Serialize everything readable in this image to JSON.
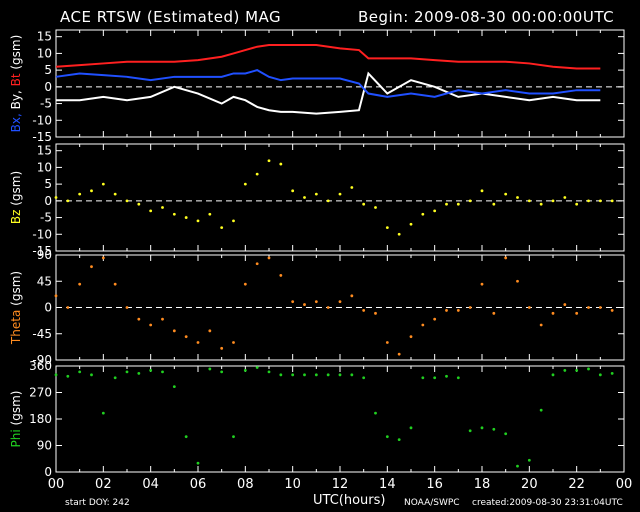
{
  "header": {
    "title": "ACE RTSW (Estimated) MAG",
    "begin": "Begin: 2009-08-30 00:00:00UTC"
  },
  "footer": {
    "start_doy": "start DOY:  242",
    "x_axis_label": "UTC(hours)",
    "credit": "NOAA/SWPC",
    "created": "created:2009-08-30 23:31:04UTC"
  },
  "colors": {
    "background": "#000000",
    "axes": "#ffffff",
    "bt": "#ff2020",
    "by": "#ffffff",
    "bx": "#2050ff",
    "bz": "#ffff20",
    "theta": "#ff8c20",
    "phi": "#20d020"
  },
  "chart_data": [
    {
      "type": "line",
      "ylabel_parts": [
        {
          "text": "Bx,",
          "color": "#2050ff"
        },
        {
          "text": " By,",
          "color": "#ffffff"
        },
        {
          "text": " Bt",
          "color": "#ff2020"
        },
        {
          "text": "  (gsm)",
          "color": "#ffffff"
        }
      ],
      "xlim": [
        0,
        24
      ],
      "ylim": [
        -15,
        17
      ],
      "yticks": [
        15,
        10,
        5,
        0,
        -5,
        -10,
        -15
      ],
      "zero_line": true,
      "x": [
        0,
        1,
        2,
        3,
        4,
        5,
        6,
        7,
        7.5,
        8,
        8.5,
        9,
        9.5,
        10,
        11,
        12,
        12.8,
        13.2,
        14,
        15,
        16,
        17,
        18,
        19,
        20,
        21,
        22,
        23
      ],
      "series": [
        {
          "name": "Bt",
          "color": "#ff2020",
          "values": [
            6,
            6.5,
            7,
            7.5,
            7.5,
            7.5,
            8,
            9,
            10,
            11,
            12,
            12.5,
            12.5,
            12.5,
            12.5,
            11.5,
            11,
            8.5,
            8.5,
            8.5,
            8,
            7.5,
            7.5,
            7.5,
            7,
            6,
            5.5,
            5.5
          ]
        },
        {
          "name": "By",
          "color": "#ffffff",
          "values": [
            -4,
            -4,
            -3,
            -4,
            -3,
            0,
            -2,
            -5,
            -3,
            -4,
            -6,
            -7,
            -7.5,
            -7.5,
            -8,
            -7.5,
            -7,
            4,
            -2,
            2,
            0,
            -3,
            -2,
            -3,
            -4,
            -3,
            -4,
            -4
          ]
        },
        {
          "name": "Bx",
          "color": "#2050ff",
          "values": [
            3,
            4,
            3.5,
            3,
            2,
            3,
            3,
            3,
            4,
            4,
            5,
            3,
            2,
            2.5,
            2.5,
            2.5,
            1,
            -2,
            -3,
            -2,
            -3,
            -1,
            -2,
            -1,
            -2,
            -2,
            -1,
            -1
          ]
        }
      ]
    },
    {
      "type": "scatter",
      "ylabel_parts": [
        {
          "text": "Bz",
          "color": "#ffff20"
        },
        {
          "text": "  (gsm)",
          "color": "#ffffff"
        }
      ],
      "xlim": [
        0,
        24
      ],
      "ylim": [
        -15,
        17
      ],
      "yticks": [
        15,
        10,
        5,
        0,
        -5,
        -10,
        -15
      ],
      "zero_line": true,
      "series": [
        {
          "name": "Bz",
          "color": "#ffff20",
          "x": [
            0,
            0.5,
            1,
            1.5,
            2,
            2.5,
            3,
            3.5,
            4,
            4.5,
            5,
            5.5,
            6,
            6.5,
            7,
            7.5,
            8,
            8.5,
            9,
            9.5,
            10,
            10.5,
            11,
            11.5,
            12,
            12.5,
            13,
            13.5,
            14,
            14.5,
            15,
            15.5,
            16,
            16.5,
            17,
            17.5,
            18,
            18.5,
            19,
            19.5,
            20,
            20.5,
            21,
            21.5,
            22,
            22.5,
            23,
            23.5
          ],
          "values": [
            1,
            0,
            2,
            3,
            5,
            2,
            0,
            -1,
            -3,
            -2,
            -4,
            -5,
            -6,
            -4,
            -8,
            -6,
            5,
            8,
            12,
            11,
            3,
            1,
            2,
            0,
            2,
            4,
            -1,
            -2,
            -8,
            -10,
            -7,
            -4,
            -3,
            -1,
            -1,
            0,
            3,
            -1,
            2,
            1,
            0,
            -1,
            0,
            1,
            -1,
            0,
            0,
            0
          ]
        }
      ]
    },
    {
      "type": "scatter",
      "ylabel_parts": [
        {
          "text": "Theta",
          "color": "#ff8c20"
        },
        {
          "text": "  (gsm)",
          "color": "#ffffff"
        }
      ],
      "xlim": [
        0,
        24
      ],
      "ylim": [
        -90,
        90
      ],
      "yticks": [
        90,
        45,
        0,
        -45,
        -90
      ],
      "zero_line": true,
      "series": [
        {
          "name": "Theta",
          "color": "#ff8c20",
          "x": [
            0,
            0.5,
            1,
            1.5,
            2,
            2.5,
            3,
            3.5,
            4,
            4.5,
            5,
            5.5,
            6,
            6.5,
            7,
            7.5,
            8,
            8.5,
            9,
            9.5,
            10,
            10.5,
            11,
            11.5,
            12,
            12.5,
            13,
            13.5,
            14,
            14.5,
            15,
            15.5,
            16,
            16.5,
            17,
            17.5,
            18,
            18.5,
            19,
            19.5,
            20,
            20.5,
            21,
            21.5,
            22,
            22.5,
            23,
            23.5
          ],
          "values": [
            20,
            0,
            40,
            70,
            85,
            40,
            0,
            -20,
            -30,
            -20,
            -40,
            -50,
            -60,
            -40,
            -70,
            -60,
            40,
            75,
            85,
            55,
            10,
            5,
            10,
            0,
            10,
            20,
            -5,
            -10,
            -60,
            -80,
            -50,
            -30,
            -20,
            -5,
            -5,
            0,
            40,
            -10,
            85,
            45,
            0,
            -30,
            -10,
            5,
            -10,
            0,
            0,
            -5
          ]
        }
      ]
    },
    {
      "type": "scatter",
      "ylabel_parts": [
        {
          "text": "Phi",
          "color": "#20d020"
        },
        {
          "text": "  (gsm)",
          "color": "#ffffff"
        }
      ],
      "xlim": [
        0,
        24
      ],
      "ylim": [
        0,
        360
      ],
      "yticks": [
        360,
        270,
        180,
        90,
        0
      ],
      "zero_line": false,
      "xticks": [
        "00",
        "02",
        "04",
        "06",
        "08",
        "10",
        "12",
        "14",
        "16",
        "18",
        "20",
        "22",
        "00"
      ],
      "series": [
        {
          "name": "Phi",
          "color": "#20d020",
          "x": [
            0,
            0.5,
            1,
            1.5,
            2,
            2.5,
            3,
            3.5,
            4,
            4.5,
            5,
            5.5,
            6,
            6.5,
            7,
            7.5,
            8,
            8.5,
            9,
            9.5,
            10,
            10.5,
            11,
            11.5,
            12,
            12.5,
            13,
            13.5,
            14,
            14.5,
            15,
            15.5,
            16,
            16.5,
            17,
            17.5,
            18,
            18.5,
            19,
            19.5,
            20,
            20.5,
            21,
            21.5,
            22,
            22.5,
            23,
            23.5
          ],
          "values": [
            330,
            325,
            340,
            330,
            200,
            320,
            340,
            335,
            345,
            340,
            290,
            120,
            30,
            350,
            340,
            120,
            345,
            355,
            340,
            330,
            330,
            330,
            330,
            330,
            330,
            330,
            320,
            200,
            120,
            110,
            150,
            320,
            320,
            325,
            320,
            140,
            150,
            145,
            130,
            20,
            40,
            210,
            330,
            345,
            345,
            350,
            330,
            335
          ]
        }
      ]
    }
  ]
}
